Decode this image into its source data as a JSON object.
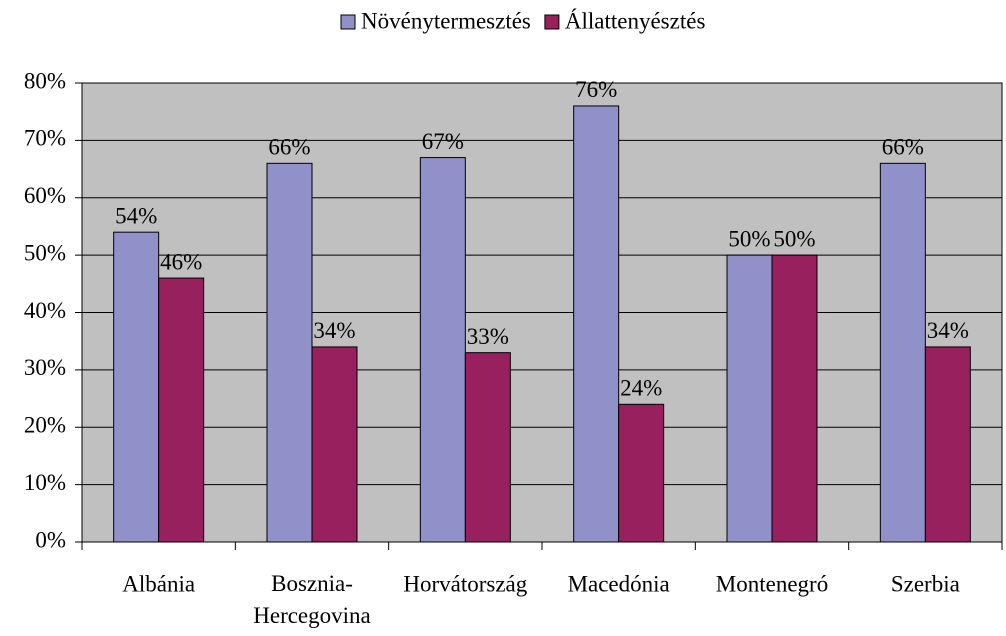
{
  "chart_data": {
    "type": "bar",
    "categories": [
      "Albánia",
      "Bosznia-Hercegovina",
      "Horvátország",
      "Macedónia",
      "Montenegró",
      "Szerbia"
    ],
    "series": [
      {
        "name": "Növénytermesztés",
        "color": "#9191c9",
        "values": [
          54,
          66,
          67,
          76,
          50,
          66
        ],
        "value_labels": [
          "54%",
          "66%",
          "67%",
          "76%",
          "50%",
          "66%"
        ]
      },
      {
        "name": "Állattenyésztés",
        "color": "#99205e",
        "values": [
          46,
          34,
          33,
          24,
          50,
          34
        ],
        "value_labels": [
          "46%",
          "34%",
          "33%",
          "24%",
          "50%",
          "34%"
        ]
      }
    ],
    "ylim": [
      0,
      80
    ],
    "yticks": [
      {
        "value": 0,
        "label": "0%"
      },
      {
        "value": 10,
        "label": "10%"
      },
      {
        "value": 20,
        "label": "20%"
      },
      {
        "value": 30,
        "label": "30%"
      },
      {
        "value": 40,
        "label": "40%"
      },
      {
        "value": 50,
        "label": "50%"
      },
      {
        "value": 60,
        "label": "60%"
      },
      {
        "value": 70,
        "label": "70%"
      },
      {
        "value": 80,
        "label": "80%"
      }
    ],
    "grid": true,
    "legend": "top"
  }
}
